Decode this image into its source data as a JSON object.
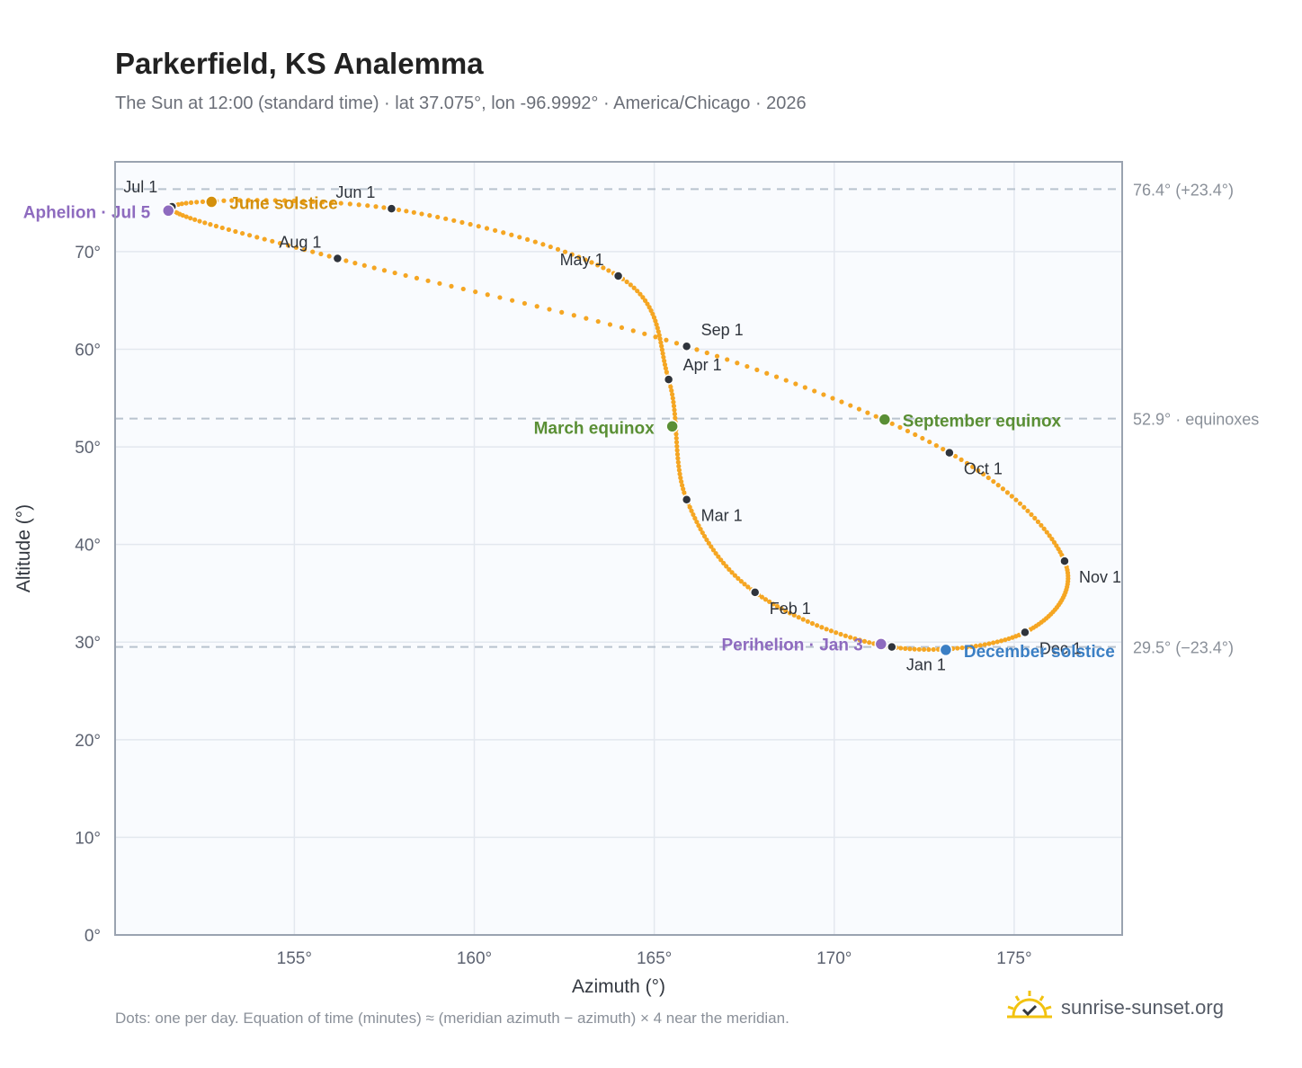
{
  "title": "Parkerfield, KS Analemma",
  "subtitle": "The Sun at 12:00 (standard time) · lat 37.075°, lon -96.9992° · America/Chicago · 2026",
  "footnote": "Dots: one per day. Equation of time (minutes) ≈ (meridian azimuth − azimuth) × 4 near the meridian.",
  "brand": {
    "name": "sunrise-sunset.org",
    "icon": "sun-check-icon"
  },
  "colors": {
    "curve": "#f5a623",
    "month_marker": "#2f343c",
    "aphelion": "#8e6bbf",
    "june_solstice": "#d4900c",
    "equinox": "#5a8f35",
    "december_solstice": "#3b7fc4",
    "grid": "#e3e8ef",
    "plot_bg": "#f9fbfe",
    "frame": "#9aa3b0",
    "ref_line": "#b9c3cf"
  },
  "chart_data": {
    "type": "scatter",
    "xlabel": "Azimuth (°)",
    "ylabel": "Altitude (°)",
    "xlim": [
      150.02,
      178.0
    ],
    "ylim": [
      0,
      79.2
    ],
    "xticks": [
      155,
      160,
      165,
      170,
      175
    ],
    "xtick_labels": [
      "155°",
      "160°",
      "165°",
      "170°",
      "175°"
    ],
    "yticks": [
      0,
      10,
      20,
      30,
      40,
      50,
      60,
      70
    ],
    "ytick_labels": [
      "0°",
      "10°",
      "20°",
      "30°",
      "40°",
      "50°",
      "60°",
      "70°"
    ],
    "grid": true,
    "reference_lines": [
      {
        "altitude": 76.4,
        "label": "76.4° (+23.4°)"
      },
      {
        "altitude": 52.9,
        "label": "52.9° · equinoxes"
      },
      {
        "altitude": 29.5,
        "label": "29.5° (−23.4°)"
      }
    ],
    "month_markers": [
      {
        "label": "Jan 1",
        "az": 171.6,
        "alt": 29.5
      },
      {
        "label": "Feb 1",
        "az": 167.8,
        "alt": 35.1
      },
      {
        "label": "Mar 1",
        "az": 165.9,
        "alt": 44.6
      },
      {
        "label": "Apr 1",
        "az": 165.4,
        "alt": 56.9
      },
      {
        "label": "May 1",
        "az": 164.0,
        "alt": 67.5
      },
      {
        "label": "Jun 1",
        "az": 157.7,
        "alt": 74.4
      },
      {
        "label": "Jul 1",
        "az": 151.6,
        "alt": 74.6
      },
      {
        "label": "Aug 1",
        "az": 156.2,
        "alt": 69.3
      },
      {
        "label": "Sep 1",
        "az": 165.9,
        "alt": 60.3
      },
      {
        "label": "Oct 1",
        "az": 173.2,
        "alt": 49.4
      },
      {
        "label": "Nov 1",
        "az": 176.4,
        "alt": 38.3
      },
      {
        "label": "Dec 1",
        "az": 175.3,
        "alt": 31.0
      }
    ],
    "events": [
      {
        "label": "Aphelion · Jul 5",
        "az": 151.5,
        "alt": 74.2,
        "kind": "aphelion"
      },
      {
        "label": "June solstice",
        "az": 152.7,
        "alt": 75.1,
        "kind": "june_solstice"
      },
      {
        "label": "March equinox",
        "az": 165.5,
        "alt": 52.1,
        "kind": "equinox"
      },
      {
        "label": "September equinox",
        "az": 171.4,
        "alt": 52.8,
        "kind": "equinox"
      },
      {
        "label": "Perihelion · Jan 3",
        "az": 171.3,
        "alt": 29.8,
        "kind": "aphelion"
      },
      {
        "label": "December solstice",
        "az": 173.1,
        "alt": 29.2,
        "kind": "december_solstice"
      }
    ]
  }
}
